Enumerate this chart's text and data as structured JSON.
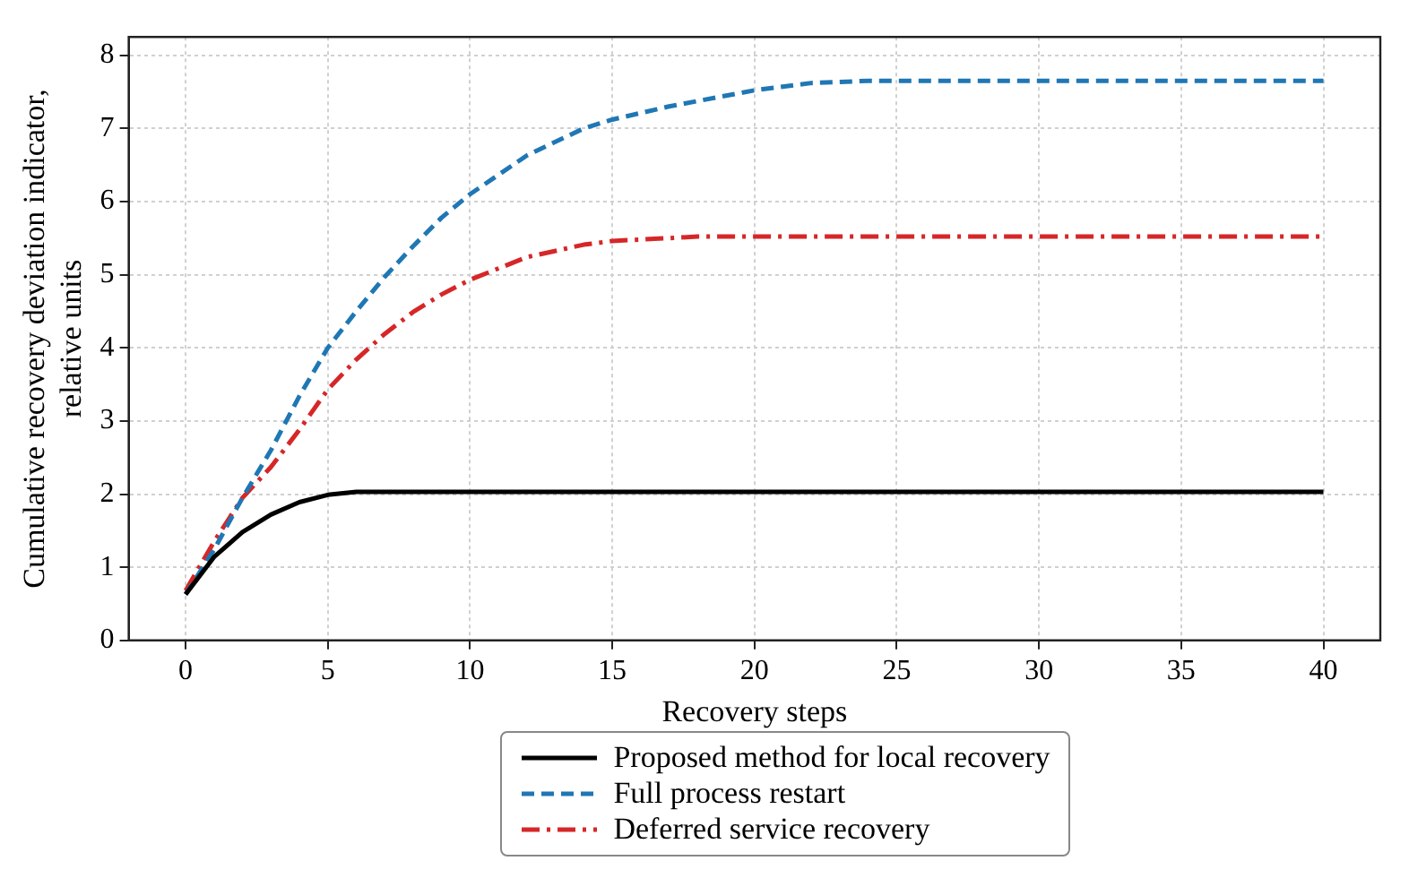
{
  "chart_data": {
    "type": "line",
    "xlabel": "Recovery steps",
    "ylabel": "Cumulative recovery deviation indicator, relative units",
    "xlim": [
      -2,
      42
    ],
    "xticks": [
      0,
      5,
      10,
      15,
      20,
      25,
      30,
      35,
      40
    ],
    "ylim": [
      0,
      8.25
    ],
    "yticks": [
      0,
      1,
      2,
      3,
      4,
      5,
      6,
      7,
      8
    ],
    "grid": true,
    "legend": "bottom",
    "marker": "none",
    "series": [
      {
        "name": "Proposed method for local recovery",
        "color": "#000000",
        "line_style": "solid",
        "x": [
          0,
          1,
          2,
          3,
          4,
          5,
          6,
          40
        ],
        "values": [
          0.63,
          1.14,
          1.48,
          1.72,
          1.89,
          1.99,
          2.03,
          2.03
        ]
      },
      {
        "name": "Full process restart",
        "color": "#1f77b4",
        "line_style": "dashed",
        "x": [
          0,
          1,
          2,
          3,
          4,
          5,
          6,
          7,
          8,
          9,
          10,
          12,
          14,
          15,
          17,
          20,
          22,
          24,
          40
        ],
        "values": [
          0.63,
          1.24,
          1.95,
          2.6,
          3.34,
          4.0,
          4.5,
          4.97,
          5.39,
          5.78,
          6.1,
          6.63,
          7.0,
          7.12,
          7.3,
          7.52,
          7.62,
          7.65,
          7.65
        ]
      },
      {
        "name": "Deferred service recovery",
        "color": "#d62728",
        "line_style": "dashdot",
        "x": [
          0,
          1,
          2,
          3,
          4,
          5,
          6,
          7,
          8,
          9,
          10,
          12,
          14,
          15,
          17,
          18,
          40
        ],
        "values": [
          0.68,
          1.35,
          1.95,
          2.37,
          2.88,
          3.43,
          3.84,
          4.19,
          4.49,
          4.73,
          4.93,
          5.24,
          5.41,
          5.46,
          5.5,
          5.52,
          5.52
        ]
      }
    ]
  }
}
